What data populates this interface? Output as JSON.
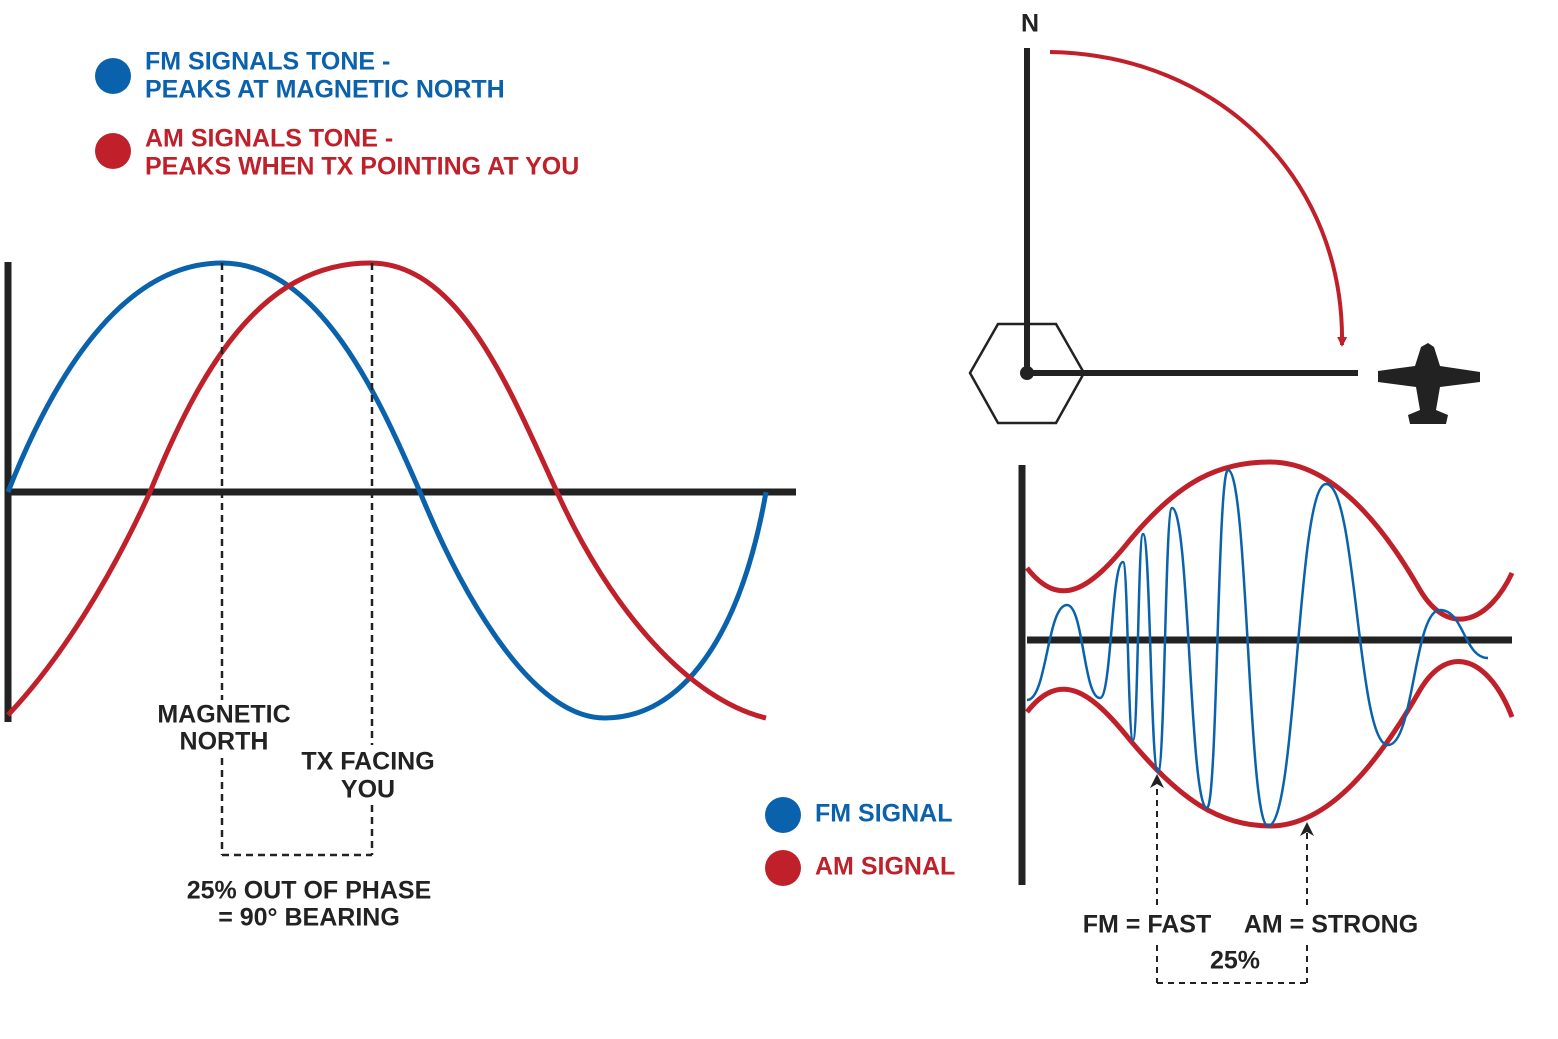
{
  "top_legend": {
    "fm": [
      "FM SIGNALS TONE -",
      "PEAKS AT MAGNETIC NORTH"
    ],
    "am": [
      "AM SIGNALS TONE -",
      "PEAKS WHEN TX POINTING AT YOU"
    ]
  },
  "phase_chart": {
    "magnetic_north": [
      "MAGNETIC",
      "NORTH"
    ],
    "tx_facing": [
      "TX FACING",
      "YOU"
    ],
    "caption": [
      "25% OUT OF PHASE",
      "= 90° BEARING"
    ]
  },
  "signal_legend": {
    "fm": "FM SIGNAL",
    "am": "AM SIGNAL"
  },
  "bearing_diagram": {
    "north": "N"
  },
  "modulation_chart": {
    "fm": "FM = FAST",
    "am": "AM = STRONG",
    "offset": "25%"
  }
}
